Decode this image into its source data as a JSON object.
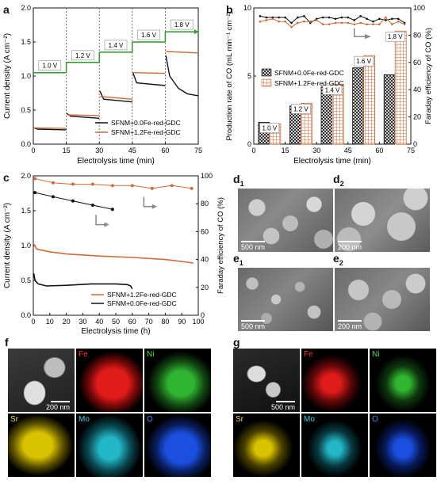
{
  "panels": {
    "a": {
      "letter": "a"
    },
    "b": {
      "letter": "b"
    },
    "c": {
      "letter": "c"
    },
    "d1": {
      "letter": "d",
      "sub": "1",
      "scale": "500 nm"
    },
    "d2": {
      "letter": "d",
      "sub": "2",
      "scale": "200 nm"
    },
    "e1": {
      "letter": "e",
      "sub": "1",
      "scale": "500 nm"
    },
    "e2": {
      "letter": "e",
      "sub": "2",
      "scale": "200 nm"
    },
    "f": {
      "letter": "f",
      "scale": "200 nm",
      "maps": [
        "Fe",
        "Ni",
        "Sr",
        "Mo",
        "O"
      ]
    },
    "g": {
      "letter": "g",
      "scale": "500 nm",
      "maps": [
        "Fe",
        "Ni",
        "Sr",
        "Mo",
        "O"
      ]
    }
  },
  "colors": {
    "black": "#111111",
    "orange": "#d2693a",
    "green": "#2a9a2a",
    "gray": "#888888",
    "Fe": "#e11a1a",
    "Ni": "#2fb52f",
    "Sr": "#d9c200",
    "Mo": "#22b8c8",
    "O": "#1a4fe0"
  },
  "chart_data": [
    {
      "id": "a",
      "type": "line",
      "xlabel": "Electrolysis time (min)",
      "ylabel": "Current density (A cm⁻²)",
      "xlim": [
        0,
        75
      ],
      "ylim": [
        0,
        2.0
      ],
      "xticks": [
        0,
        15,
        30,
        45,
        60,
        75
      ],
      "yticks": [
        0.0,
        0.5,
        1.0,
        1.5,
        2.0
      ],
      "voltage_steps": [
        {
          "label": "1.0 V",
          "x0": 0,
          "x1": 15,
          "y": 1.05
        },
        {
          "label": "1.2 V",
          "x0": 15,
          "x1": 30,
          "y": 1.2
        },
        {
          "label": "1.4 V",
          "x0": 30,
          "x1": 45,
          "y": 1.35
        },
        {
          "label": "1.6 V",
          "x0": 45,
          "x1": 60,
          "y": 1.5
        },
        {
          "label": "1.8 V",
          "x0": 60,
          "x1": 75,
          "y": 1.65
        }
      ],
      "series": [
        {
          "name": "SFNM+0.0Fe-red-GDC",
          "color": "#111111",
          "segments": [
            [
              [
                0.3,
                0.24
              ],
              [
                2,
                0.22
              ],
              [
                15,
                0.21
              ]
            ],
            [
              [
                15.3,
                0.45
              ],
              [
                17,
                0.41
              ],
              [
                30,
                0.38
              ]
            ],
            [
              [
                30.3,
                0.78
              ],
              [
                32,
                0.66
              ],
              [
                45,
                0.62
              ]
            ],
            [
              [
                45.3,
                1.05
              ],
              [
                47,
                0.9
              ],
              [
                60,
                0.86
              ]
            ],
            [
              [
                60.3,
                1.3
              ],
              [
                62,
                1.0
              ],
              [
                66,
                0.82
              ],
              [
                70,
                0.74
              ],
              [
                75,
                0.71
              ]
            ]
          ]
        },
        {
          "name": "SFNM+1.2Fe-red-GDC",
          "color": "#d2693a",
          "segments": [
            [
              [
                0.3,
                0.24
              ],
              [
                15,
                0.23
              ]
            ],
            [
              [
                15.3,
                0.43
              ],
              [
                30,
                0.42
              ]
            ],
            [
              [
                30.3,
                0.7
              ],
              [
                45,
                0.66
              ]
            ],
            [
              [
                45.3,
                1.05
              ],
              [
                60,
                1.04
              ]
            ],
            [
              [
                60.3,
                1.36
              ],
              [
                75,
                1.34
              ]
            ]
          ]
        }
      ]
    },
    {
      "id": "b",
      "type": "bar",
      "xlabel": "Electrolysis time (min)",
      "ylabel": "Production rate of CO  (mL min⁻¹ cm⁻²)",
      "y2label": "Faraday efficiency of CO (%)",
      "xlim": [
        0,
        75
      ],
      "ylim": [
        0,
        10
      ],
      "y2lim": [
        0,
        100
      ],
      "xticks": [
        0,
        15,
        30,
        45,
        60,
        75
      ],
      "yticks": [
        0,
        5,
        10
      ],
      "y2ticks": [
        0,
        20,
        40,
        60,
        80,
        100
      ],
      "bar_centers": [
        7.5,
        22.5,
        37.5,
        52.5,
        67.5
      ],
      "bar_labels": [
        "1.0 V",
        "1.2 V",
        "1.4 V",
        "1.6 V",
        "1.8 V"
      ],
      "series": [
        {
          "name": "SFNM+0.0Fe-red-GDC",
          "pattern": "crosshatch",
          "values": [
            1.6,
            2.8,
            4.2,
            5.6,
            5.1
          ]
        },
        {
          "name": "SFNM+1.2Fe-red-GDC",
          "pattern": "grid-orange",
          "values": [
            1.5,
            3.0,
            4.4,
            6.5,
            8.3
          ]
        }
      ],
      "fe_series": [
        {
          "name": "SFNM+0.0Fe-red-GDC",
          "color": "#111111",
          "x": [
            3,
            6,
            9,
            12,
            15,
            18,
            21,
            24,
            27,
            30,
            33,
            36,
            39,
            42,
            45,
            48,
            51,
            54,
            57,
            60,
            63,
            66,
            69,
            72
          ],
          "y": [
            94,
            93,
            93,
            93,
            93,
            89,
            93,
            94,
            89,
            92,
            93,
            93,
            92,
            93,
            93,
            91,
            94,
            92,
            90,
            92,
            91,
            92,
            92,
            89
          ]
        },
        {
          "name": "SFNM+1.2Fe-red-GDC",
          "color": "#d2693a",
          "x": [
            3,
            6,
            9,
            12,
            15,
            18,
            21,
            24,
            27,
            30,
            33,
            36,
            39,
            42,
            45,
            48,
            51,
            54,
            57,
            60,
            63,
            66,
            69,
            72
          ],
          "y": [
            90,
            91,
            92,
            90,
            90,
            86,
            89,
            90,
            90,
            91,
            88,
            88,
            89,
            89,
            89,
            88,
            89,
            88,
            88,
            88,
            93,
            88,
            90,
            88
          ]
        }
      ]
    },
    {
      "id": "c",
      "type": "line",
      "xlabel": "Electrolysis time (h)",
      "ylabel": "Current density (A cm⁻²)",
      "y2label": "Faraday efficiency of CO (%)",
      "xlim": [
        0,
        100
      ],
      "ylim": [
        0,
        2.0
      ],
      "y2lim": [
        0,
        100
      ],
      "xticks": [
        0,
        10,
        20,
        30,
        40,
        50,
        60,
        70,
        80,
        90,
        100
      ],
      "yticks": [
        0.0,
        0.5,
        1.0,
        1.5,
        2.0
      ],
      "y2ticks": [
        0,
        20,
        40,
        60,
        80,
        100
      ],
      "series": [
        {
          "name": "SFNM+1.2Fe-red-GDC",
          "color": "#d2693a",
          "current": [
            [
              0.3,
              1.02
            ],
            [
              2,
              0.95
            ],
            [
              10,
              0.91
            ],
            [
              20,
              0.88
            ],
            [
              40,
              0.85
            ],
            [
              60,
              0.83
            ],
            [
              80,
              0.8
            ],
            [
              97,
              0.75
            ]
          ],
          "fe": [
            [
              1,
              98
            ],
            [
              12,
              95
            ],
            [
              24,
              94
            ],
            [
              36,
              94
            ],
            [
              48,
              93
            ],
            [
              60,
              93
            ],
            [
              72,
              91
            ],
            [
              84,
              93
            ],
            [
              96,
              91
            ]
          ]
        },
        {
          "name": "SFNM+0.0Fe-red-GDC",
          "color": "#111111",
          "current": [
            [
              0.3,
              0.6
            ],
            [
              1,
              0.5
            ],
            [
              3,
              0.45
            ],
            [
              8,
              0.42
            ],
            [
              20,
              0.43
            ],
            [
              35,
              0.45
            ],
            [
              50,
              0.45
            ],
            [
              57,
              0.44
            ],
            [
              59,
              0.42
            ],
            [
              60,
              0.38
            ]
          ],
          "fe": [
            [
              1,
              88
            ],
            [
              12,
              85
            ],
            [
              24,
              82
            ],
            [
              36,
              79
            ],
            [
              48,
              76
            ]
          ]
        }
      ]
    }
  ]
}
